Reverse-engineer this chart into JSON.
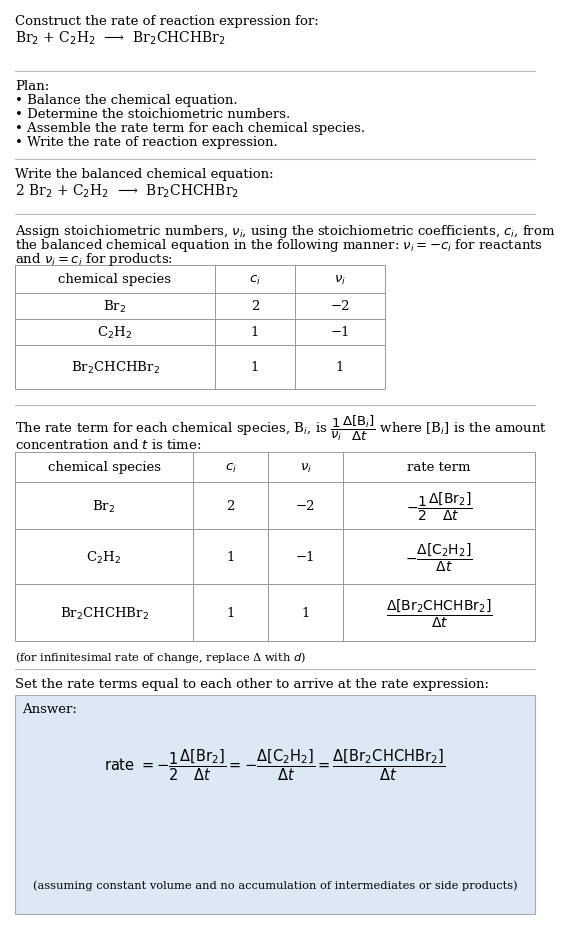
{
  "bg_color": "#ffffff",
  "text_color": "#000000",
  "answer_bg": "#dce9f5",
  "title_line1": "Construct the rate of reaction expression for:",
  "reaction_unbalanced": "Br$_2$ + C$_2$H$_2$  ⟶  Br$_2$CHCHBr$_2$",
  "plan_header": "Plan:",
  "plan_items": [
    "• Balance the chemical equation.",
    "• Determine the stoichiometric numbers.",
    "• Assemble the rate term for each chemical species.",
    "• Write the rate of reaction expression."
  ],
  "balanced_header": "Write the balanced chemical equation:",
  "reaction_balanced": "2 Br$_2$ + C$_2$H$_2$  ⟶  Br$_2$CHCHBr$_2$",
  "assign_line1": "Assign stoichiometric numbers, $\\nu_i$, using the stoichiometric coefficients, $c_i$, from",
  "assign_line2": "the balanced chemical equation in the following manner: $\\nu_i = -c_i$ for reactants",
  "assign_line3": "and $\\nu_i = c_i$ for products:",
  "table1_headers": [
    "chemical species",
    "$c_i$",
    "$\\nu_i$"
  ],
  "table1_rows": [
    [
      "Br$_2$",
      "2",
      "−2"
    ],
    [
      "C$_2$H$_2$",
      "1",
      "−1"
    ],
    [
      "Br$_2$CHCHBr$_2$",
      "1",
      "1"
    ]
  ],
  "rate_line1": "The rate term for each chemical species, B$_i$, is $\\dfrac{1}{\\nu_i}\\dfrac{\\Delta[\\mathrm{B}_i]}{\\Delta t}$ where [B$_i$] is the amount",
  "rate_line2": "concentration and $t$ is time:",
  "table2_headers": [
    "chemical species",
    "$c_i$",
    "$\\nu_i$",
    "rate term"
  ],
  "table2_row1": [
    "Br$_2$",
    "2",
    "−2",
    "$-\\dfrac{1}{2}\\dfrac{\\Delta[\\mathrm{Br}_2]}{\\Delta t}$"
  ],
  "table2_row2": [
    "C$_2$H$_2$",
    "1",
    "−1",
    "$-\\dfrac{\\Delta[\\mathrm{C}_2\\mathrm{H}_2]}{\\Delta t}$"
  ],
  "table2_row3": [
    "Br$_2$CHCHBr$_2$",
    "1",
    "1",
    "$\\dfrac{\\Delta[\\mathrm{Br}_2\\mathrm{CHCHBr}_2]}{\\Delta t}$"
  ],
  "infinitesimal_note": "(for infinitesimal rate of change, replace Δ with $d$)",
  "set_equal_text": "Set the rate terms equal to each other to arrive at the rate expression:",
  "answer_label": "Answer:",
  "answer_rate_expr": "rate $= -\\dfrac{1}{2}\\dfrac{\\Delta[\\mathrm{Br}_2]}{\\Delta t} = -\\dfrac{\\Delta[\\mathrm{C}_2\\mathrm{H}_2]}{\\Delta t} = \\dfrac{\\Delta[\\mathrm{Br}_2\\mathrm{CHCHBr}_2]}{\\Delta t}$",
  "answer_note": "(assuming constant volume and no accumulation of intermediates or side products)"
}
